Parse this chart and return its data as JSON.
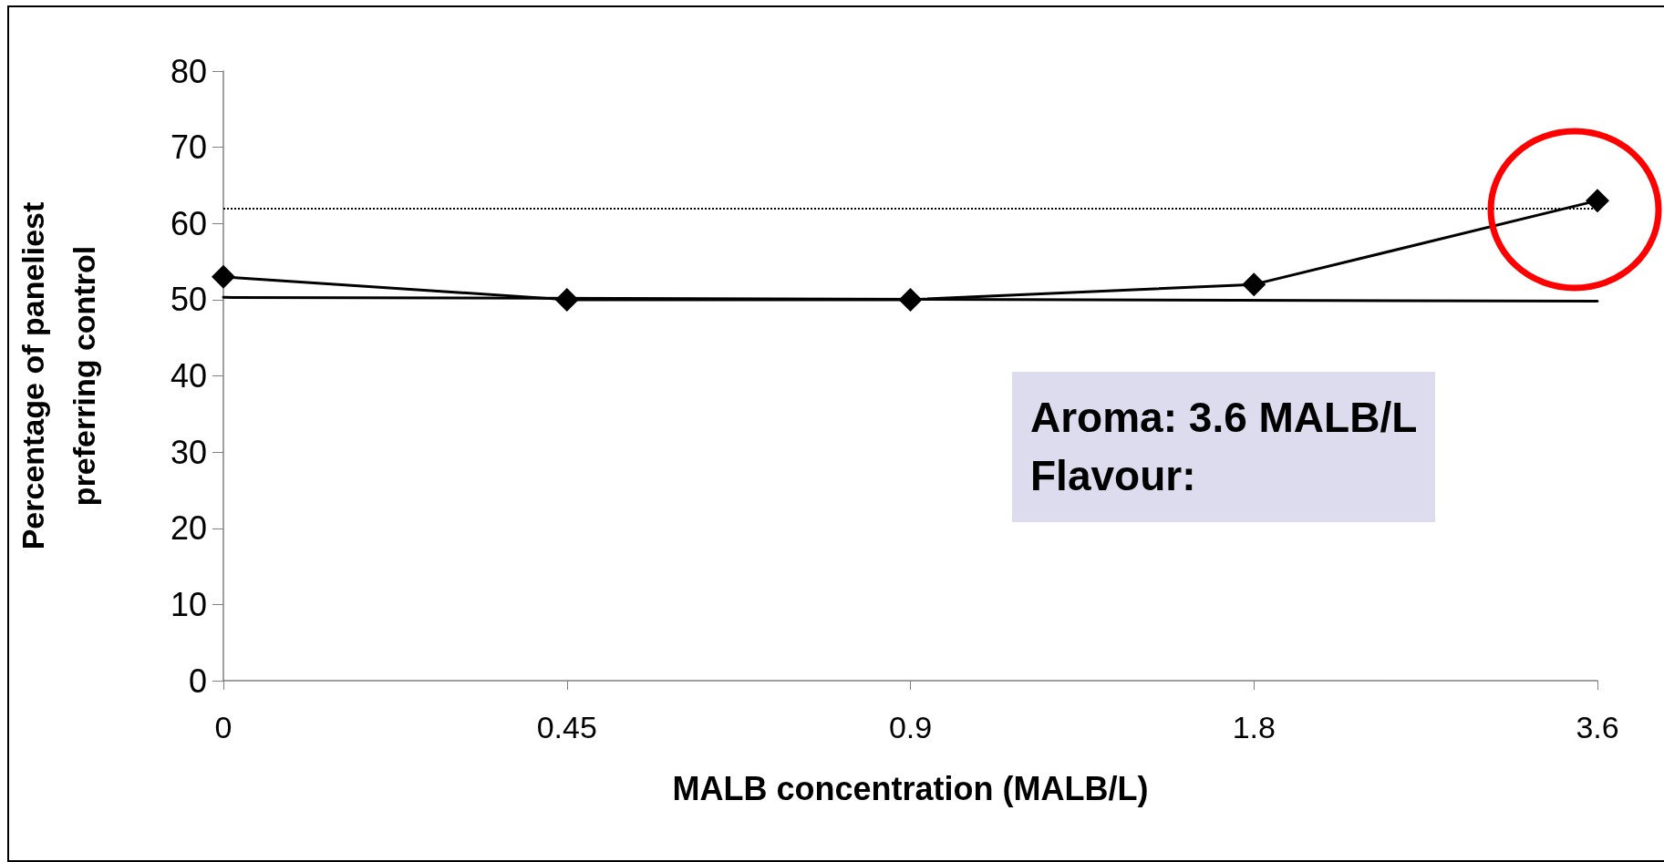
{
  "chart_data": {
    "type": "line",
    "xlabel": "MALB concentration (MALB/L)",
    "ylabel": "Percentage of paneliest\npreferring control",
    "categories": [
      "0",
      "0.45",
      "0.9",
      "1.8",
      "3.6"
    ],
    "series": [
      {
        "color": "#000000",
        "values": [
          53,
          50,
          50,
          52,
          63
        ],
        "marker": "diamond"
      },
      {
        "type": "line",
        "color": "#000000",
        "x": [
          "0",
          "3.6"
        ],
        "values": [
          50.3,
          49.8
        ],
        "marker": "none"
      }
    ],
    "ylim": [
      0,
      80
    ],
    "yticks": [
      0,
      10,
      20,
      30,
      40,
      50,
      60,
      70,
      80
    ],
    "ref_lines": [
      {
        "axis": "y",
        "value": 62,
        "color": "#000000",
        "line_style": "dotted"
      }
    ],
    "annotations": [
      "Aroma: 3.6 MALB/L\nFlavour:"
    ],
    "grid": false
  }
}
